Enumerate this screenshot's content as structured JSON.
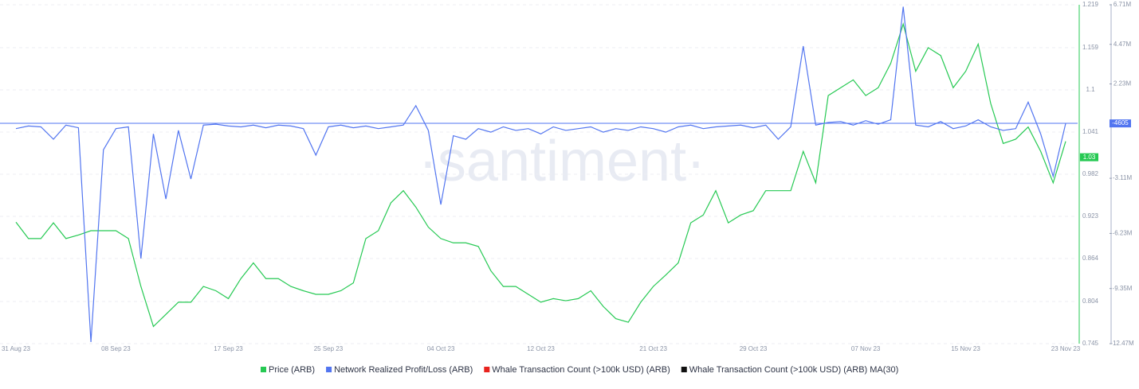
{
  "chart_data": {
    "type": "line",
    "watermark": "·santiment·",
    "categories": [
      "31 Aug 23",
      null,
      null,
      null,
      null,
      null,
      null,
      null,
      "08 Sep 23",
      null,
      null,
      null,
      null,
      null,
      null,
      null,
      null,
      "17 Sep 23",
      null,
      null,
      null,
      null,
      null,
      null,
      null,
      "25 Sep 23",
      null,
      null,
      null,
      null,
      null,
      null,
      null,
      null,
      "04 Oct 23",
      null,
      null,
      null,
      null,
      null,
      null,
      null,
      "12 Oct 23",
      null,
      null,
      null,
      null,
      null,
      null,
      null,
      null,
      "21 Oct 23",
      null,
      null,
      null,
      null,
      null,
      null,
      null,
      "29 Oct 23",
      null,
      null,
      null,
      null,
      null,
      null,
      null,
      null,
      "07 Nov 23",
      null,
      null,
      null,
      null,
      null,
      null,
      null,
      "15 Nov 23",
      null,
      null,
      null,
      null,
      null,
      null,
      null,
      "23 Nov 23"
    ],
    "series": [
      {
        "name": "Price (ARB)",
        "color": "#26c953",
        "axis": "y",
        "last_label": "1.03",
        "values": [
          0.915,
          0.892,
          0.892,
          0.914,
          0.892,
          0.897,
          0.903,
          0.903,
          0.903,
          0.892,
          0.825,
          0.769,
          0.786,
          0.803,
          0.803,
          0.825,
          0.819,
          0.808,
          0.836,
          0.858,
          0.836,
          0.836,
          0.825,
          0.819,
          0.814,
          0.814,
          0.819,
          0.83,
          0.892,
          0.903,
          0.942,
          0.959,
          0.936,
          0.908,
          0.892,
          0.886,
          0.886,
          0.881,
          0.847,
          0.825,
          0.825,
          0.814,
          0.803,
          0.808,
          0.805,
          0.808,
          0.819,
          0.797,
          0.78,
          0.775,
          0.803,
          0.825,
          0.841,
          0.858,
          0.914,
          0.925,
          0.959,
          0.914,
          0.925,
          0.931,
          0.959,
          0.959,
          0.959,
          1.014,
          0.97,
          1.092,
          1.103,
          1.114,
          1.092,
          1.103,
          1.137,
          1.192,
          1.126,
          1.159,
          1.148,
          1.103,
          1.126,
          1.164,
          1.081,
          1.025,
          1.031,
          1.048,
          1.014,
          0.97,
          1.028
        ]
      },
      {
        "name": "Network Realized Profit/Loss (ARB)",
        "color": "#5275f0",
        "axis": "y2",
        "last_label": "-4605",
        "values": [
          -300000,
          -150000,
          -200000,
          -900000,
          -100000,
          -250000,
          -12380000,
          -1500000,
          -300000,
          -200000,
          -7650000,
          -600000,
          -4280000,
          -400000,
          -3150000,
          -100000,
          -50000,
          -150000,
          -200000,
          -100000,
          -250000,
          -100000,
          -150000,
          -300000,
          -1800000,
          -200000,
          -100000,
          -250000,
          -150000,
          -300000,
          -200000,
          -100000,
          1000000,
          -400000,
          -4600000,
          -700000,
          -900000,
          -300000,
          -500000,
          -200000,
          -400000,
          -300000,
          -600000,
          -200000,
          -400000,
          -300000,
          -200000,
          -500000,
          -300000,
          -400000,
          -200000,
          -300000,
          -500000,
          -200000,
          -100000,
          -300000,
          -200000,
          -150000,
          -100000,
          -250000,
          -100000,
          -900000,
          -200000,
          4370000,
          -100000,
          50000,
          100000,
          -100000,
          150000,
          -50000,
          200000,
          6600000,
          -100000,
          -200000,
          100000,
          -300000,
          -150000,
          200000,
          -200000,
          -400000,
          -300000,
          1200000,
          -600000,
          -3000000,
          -4605
        ]
      }
    ],
    "legend": [
      {
        "name": "Price (ARB)",
        "color": "#26c953"
      },
      {
        "name": "Network Realized Profit/Loss (ARB)",
        "color": "#5275f0"
      },
      {
        "name": "Whale Transaction Count (>100k USD) (ARB)",
        "color": "#e8231e"
      },
      {
        "name": "Whale Transaction Count (>100k USD) (ARB) MA(30)",
        "color": "#111111"
      }
    ],
    "ylim": [
      0.745,
      1.219
    ],
    "yticks": [
      1.219,
      1.159,
      1.1,
      1.041,
      0.982,
      0.923,
      0.864,
      0.804,
      0.745
    ],
    "y2lim": [
      -12470000,
      6710000
    ],
    "y2ticks": [
      {
        "value": 6710000,
        "label": "6.71M"
      },
      {
        "value": 4470000,
        "label": "4.47M"
      },
      {
        "value": 2230000,
        "label": "2.23M"
      },
      {
        "value": -3110000,
        "label": "-3.11M"
      },
      {
        "value": -6230000,
        "label": "-6.23M"
      },
      {
        "value": -9350000,
        "label": "-9.35M"
      },
      {
        "value": -12470000,
        "label": "-12.47M"
      }
    ],
    "grid": true
  }
}
